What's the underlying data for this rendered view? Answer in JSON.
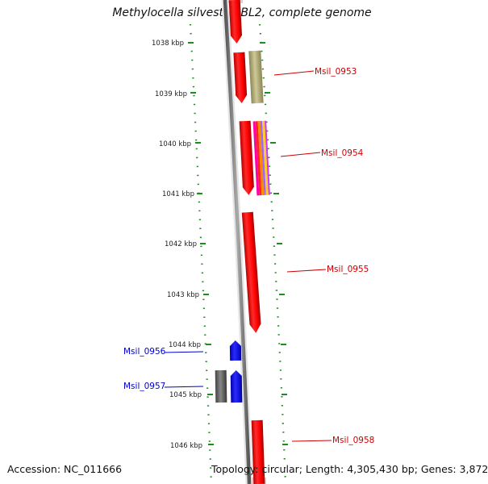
{
  "title": "Methylocella silvestris BL2, complete genome",
  "footer": {
    "accession": "Accession: NC_011666",
    "summary": "Topology: circular; Length: 4,305,430 bp; Genes: 3,872"
  },
  "colors": {
    "forward_gene": "#ff0000",
    "reverse_gene": "#0000ff",
    "forward_label": "#cc0000",
    "reverse_label": "#0000cc",
    "tick": "#1e8c1e",
    "backbone": "#8c8c8c",
    "gray_feature": "#666666",
    "khaki_feature": "#b5b07a"
  },
  "ticks": [
    "1038 kbp",
    "1039 kbp",
    "1040 kbp",
    "1041 kbp",
    "1042 kbp",
    "1043 kbp",
    "1044 kbp",
    "1045 kbp",
    "1046 kbp"
  ],
  "genes": [
    {
      "label": "Msil_0953",
      "strand": "forward"
    },
    {
      "label": "Msil_0954",
      "strand": "forward"
    },
    {
      "label": "Msil_0955",
      "strand": "forward"
    },
    {
      "label": "Msil_0956",
      "strand": "reverse"
    },
    {
      "label": "Msil_0957",
      "strand": "reverse"
    },
    {
      "label": "Msil_0958",
      "strand": "forward"
    }
  ]
}
